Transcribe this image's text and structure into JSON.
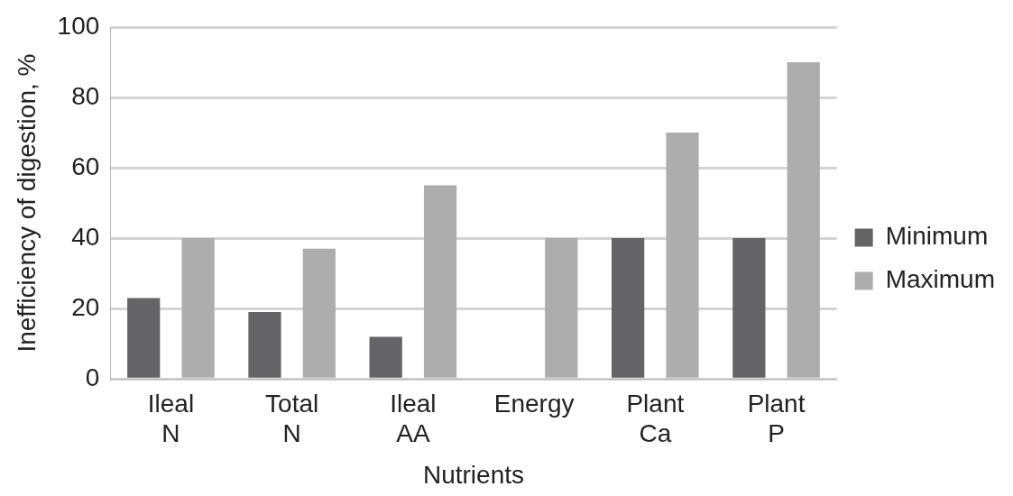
{
  "chart_data": {
    "type": "bar",
    "xlabel": "Nutrients",
    "ylabel": "Inefficiency of digestion, %",
    "categories": [
      "Ileal N",
      "Total N",
      "Ileal AA",
      "Energy",
      "Plant Ca",
      "Plant P"
    ],
    "series": [
      {
        "name": "Minimum",
        "color": "#646466",
        "values": [
          23,
          19,
          12,
          null,
          40,
          40
        ]
      },
      {
        "name": "Maximum",
        "color": "#adadad",
        "values": [
          40,
          37,
          55,
          40,
          70,
          90
        ]
      }
    ],
    "ylim": [
      0,
      100
    ],
    "yticks": [
      0,
      20,
      40,
      60,
      80,
      100
    ],
    "grid": "y",
    "legend": "right"
  }
}
